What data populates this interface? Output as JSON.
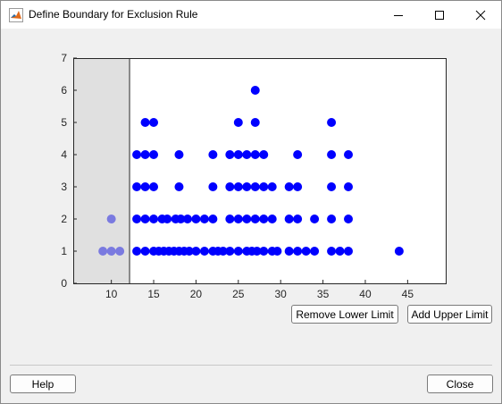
{
  "window": {
    "title": "Define Boundary for Exclusion Rule",
    "app_icon": "matlab-icon",
    "controls": [
      "minimize-icon",
      "maximize-icon",
      "close-icon"
    ]
  },
  "colors": {
    "point": "#0000ff",
    "excluded_point": "#7a7ae0",
    "excluded_region": "#e0e0e0",
    "axes": "#262626"
  },
  "chart_data": {
    "type": "scatter",
    "xlim": [
      5.5,
      49.5
    ],
    "ylim": [
      0,
      7
    ],
    "xticks": [
      "10",
      "15",
      "20",
      "25",
      "30",
      "35",
      "40",
      "45"
    ],
    "xtick_values": [
      10,
      15,
      20,
      25,
      30,
      35,
      40,
      45
    ],
    "yticks": [
      "0",
      "1",
      "2",
      "3",
      "4",
      "5",
      "6",
      "7"
    ],
    "ytick_values": [
      0,
      1,
      2,
      3,
      4,
      5,
      6,
      7
    ],
    "grid": false,
    "excluded_region": {
      "x_from": 5.5,
      "x_to": 12.1
    },
    "excluded_points": [
      [
        9,
        1
      ],
      [
        10,
        1
      ],
      [
        11,
        1
      ],
      [
        10,
        2
      ]
    ],
    "points": [
      [
        13,
        1
      ],
      [
        14,
        1
      ],
      [
        15,
        1
      ],
      [
        15.6,
        1
      ],
      [
        16.2,
        1
      ],
      [
        16.8,
        1
      ],
      [
        17.4,
        1
      ],
      [
        18,
        1
      ],
      [
        18.6,
        1
      ],
      [
        19.2,
        1
      ],
      [
        20,
        1
      ],
      [
        21,
        1
      ],
      [
        22,
        1
      ],
      [
        22.6,
        1
      ],
      [
        23.2,
        1
      ],
      [
        24,
        1
      ],
      [
        25,
        1
      ],
      [
        26,
        1
      ],
      [
        26.6,
        1
      ],
      [
        27.2,
        1
      ],
      [
        28,
        1
      ],
      [
        29,
        1
      ],
      [
        29.6,
        1
      ],
      [
        31,
        1
      ],
      [
        32,
        1
      ],
      [
        33,
        1
      ],
      [
        34,
        1
      ],
      [
        36,
        1
      ],
      [
        37,
        1
      ],
      [
        38,
        1
      ],
      [
        44,
        1
      ],
      [
        13,
        2
      ],
      [
        14,
        2
      ],
      [
        15,
        2
      ],
      [
        16,
        2
      ],
      [
        16.6,
        2
      ],
      [
        17.6,
        2
      ],
      [
        18.2,
        2
      ],
      [
        19,
        2
      ],
      [
        20,
        2
      ],
      [
        21,
        2
      ],
      [
        22,
        2
      ],
      [
        24,
        2
      ],
      [
        25,
        2
      ],
      [
        26,
        2
      ],
      [
        27,
        2
      ],
      [
        28,
        2
      ],
      [
        29,
        2
      ],
      [
        31,
        2
      ],
      [
        32,
        2
      ],
      [
        34,
        2
      ],
      [
        36,
        2
      ],
      [
        38,
        2
      ],
      [
        13,
        3
      ],
      [
        14,
        3
      ],
      [
        15,
        3
      ],
      [
        18,
        3
      ],
      [
        22,
        3
      ],
      [
        24,
        3
      ],
      [
        25,
        3
      ],
      [
        26,
        3
      ],
      [
        27,
        3
      ],
      [
        28,
        3
      ],
      [
        29,
        3
      ],
      [
        31,
        3
      ],
      [
        32,
        3
      ],
      [
        36,
        3
      ],
      [
        38,
        3
      ],
      [
        13,
        4
      ],
      [
        14,
        4
      ],
      [
        15,
        4
      ],
      [
        18,
        4
      ],
      [
        22,
        4
      ],
      [
        24,
        4
      ],
      [
        25,
        4
      ],
      [
        26,
        4
      ],
      [
        27,
        4
      ],
      [
        28,
        4
      ],
      [
        32,
        4
      ],
      [
        36,
        4
      ],
      [
        38,
        4
      ],
      [
        14,
        5
      ],
      [
        15,
        5
      ],
      [
        25,
        5
      ],
      [
        27,
        5
      ],
      [
        36,
        5
      ],
      [
        27,
        6
      ]
    ]
  },
  "buttons": {
    "remove_lower": "Remove Lower Limit",
    "add_upper": "Add Upper Limit",
    "help": "Help",
    "close": "Close"
  }
}
